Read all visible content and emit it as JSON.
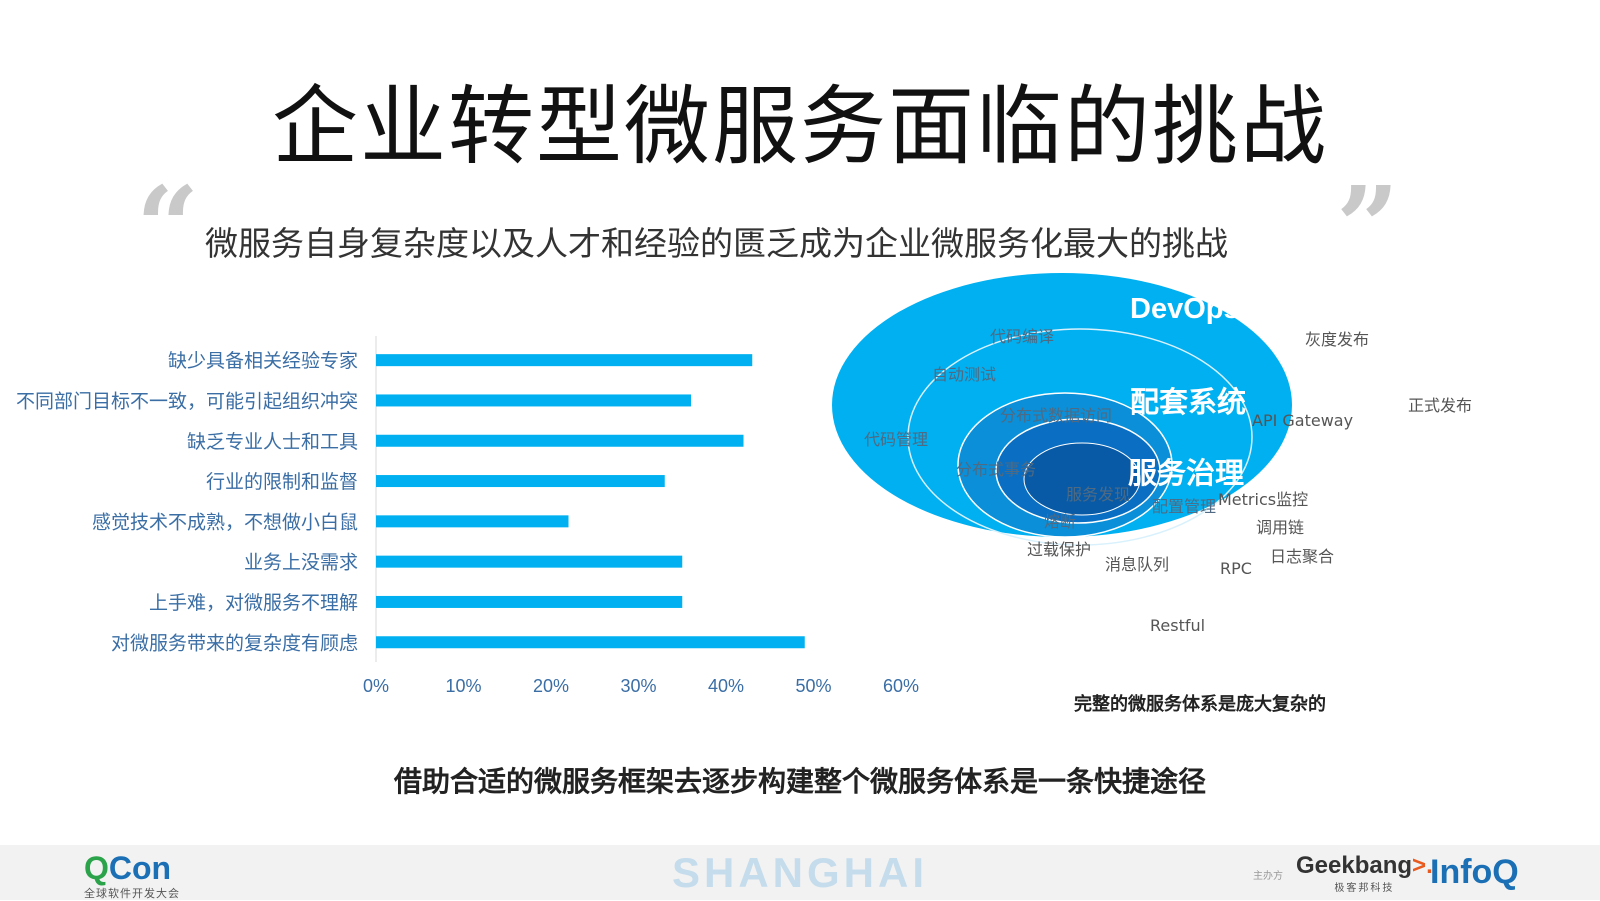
{
  "slide": {
    "title": "企业转型微服务面临的挑战",
    "quote_open": "“",
    "quote_close": "”",
    "subtitle": "微服务自身复杂度以及人才和经验的匮乏成为企业微服务化最大的挑战",
    "conclusion": "借助合适的微服务框架去逐步构建整个微服务体系是一条快捷途径"
  },
  "chart_data": [
    {
      "type": "bar",
      "orientation": "horizontal",
      "categories": [
        "缺少具备相关经验专家",
        "不同部门目标不一致，可能引起组织冲突",
        "缺乏专业人士和工具",
        "行业的限制和监督",
        "感觉技术不成熟，不想做小白鼠",
        "业务上没需求",
        "上手难，对微服务不理解",
        "对微服务带来的复杂度有顾虑"
      ],
      "values": [
        43,
        36,
        42,
        33,
        22,
        35,
        35,
        49
      ],
      "xlim": [
        0,
        60
      ],
      "xticks": [
        "0%",
        "10%",
        "20%",
        "30%",
        "40%",
        "50%",
        "60%"
      ],
      "bar_color": "#00b0f0",
      "grid": false,
      "legend": "none"
    },
    {
      "type": "nested-ellipse-diagram",
      "layers": [
        {
          "label": "DevOps",
          "fill": "#00b0f0"
        },
        {
          "label": "配套系统",
          "fill": "#0a8fd8"
        },
        {
          "label": "服务治理",
          "fill": "#0a6fc2"
        }
      ],
      "terms": [
        "代码编译",
        "灰度发布",
        "自动测试",
        "正式发布",
        "分布式数据访问",
        "API Gateway",
        "代码管理",
        "分布式事务",
        "服务发现",
        "配置管理",
        "Metrics监控",
        "熔断",
        "调用链",
        "过载保护",
        "日志聚合",
        "消息队列",
        "RPC",
        "Restful"
      ],
      "caption": "完整的微服务体系是庞大复杂的"
    }
  ],
  "footer": {
    "qcon_q": "Q",
    "qcon_rest": "Con",
    "qcon_sub": "全球软件开发大会",
    "city": "SHANGHAI",
    "sponsor_label": "主办方",
    "geek_name": "Geekbang",
    "geek_arrow": ">.",
    "geek_sub": "极客邦科技",
    "infoq": "InfoQ"
  }
}
